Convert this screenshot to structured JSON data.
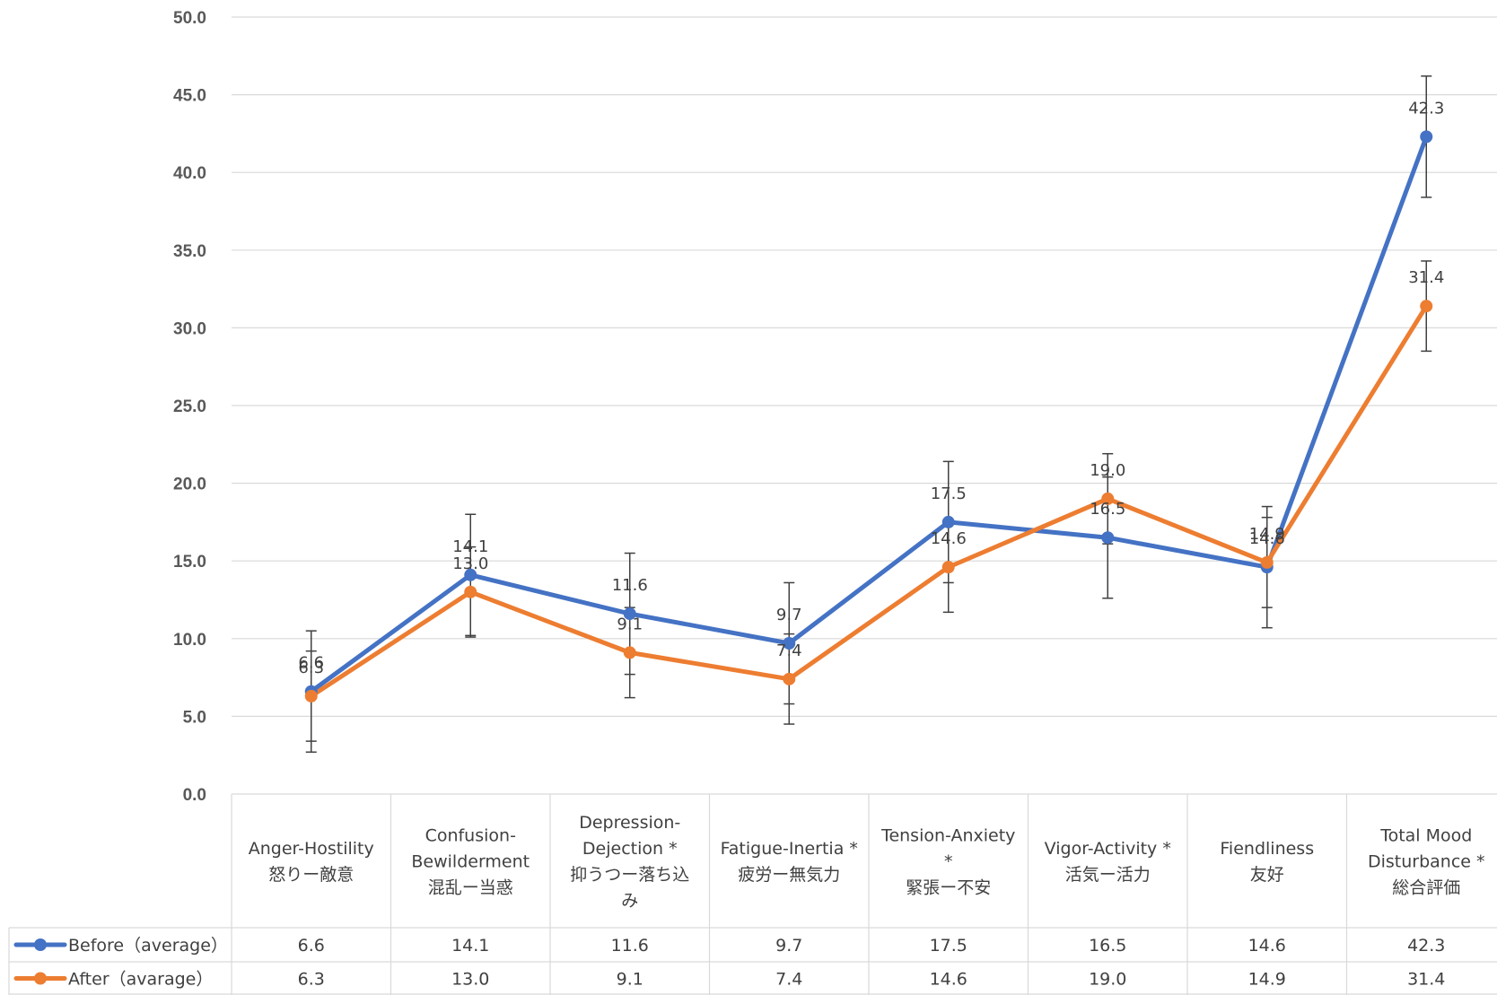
{
  "chart_data": {
    "type": "line",
    "title": "",
    "xlabel": "",
    "ylabel": "",
    "ylim": [
      0,
      50
    ],
    "yticks": [
      "0.0",
      "5.0",
      "10.0",
      "15.0",
      "20.0",
      "25.0",
      "30.0",
      "35.0",
      "40.0",
      "45.0",
      "50.0"
    ],
    "grid": true,
    "legend": "data-table-left",
    "categories": [
      [
        "Anger-Hostility",
        "怒りー敵意"
      ],
      [
        "Confusion-",
        "Bewilderment",
        "混乱ー当惑"
      ],
      [
        "Depression-",
        "Dejection *",
        "抑うつー落ち込",
        "み"
      ],
      [
        "Fatigue-Inertia *",
        "疲労ー無気力"
      ],
      [
        "Tension-Anxiety",
        "*",
        "緊張ー不安"
      ],
      [
        "Vigor-Activity *",
        "活気ー活力"
      ],
      [
        "Fiendliness",
        "友好"
      ],
      [
        "Total Mood",
        "Disturbance *",
        "総合評価"
      ]
    ],
    "series": [
      {
        "name": "Before（average）",
        "color": "#4472C4",
        "values": [
          6.6,
          14.1,
          11.6,
          9.7,
          17.5,
          16.5,
          14.6,
          42.3
        ],
        "labels": [
          "6.6",
          "14.1",
          "11.6",
          "9.7",
          "17.5",
          "16.5",
          "14.6",
          "42.3"
        ],
        "error": [
          3.9,
          3.9,
          3.9,
          3.9,
          3.9,
          3.9,
          3.9,
          3.9
        ]
      },
      {
        "name": "After（avarage）",
        "color": "#ED7D31",
        "values": [
          6.3,
          13.0,
          9.1,
          7.4,
          14.6,
          19.0,
          14.9,
          31.4
        ],
        "labels": [
          "6.3",
          "13.0",
          "9.1",
          "7.4",
          "14.6",
          "19.0",
          "14.9",
          "31.4"
        ],
        "error": [
          2.9,
          2.9,
          2.9,
          2.9,
          2.9,
          2.9,
          2.9,
          2.9
        ]
      }
    ]
  }
}
